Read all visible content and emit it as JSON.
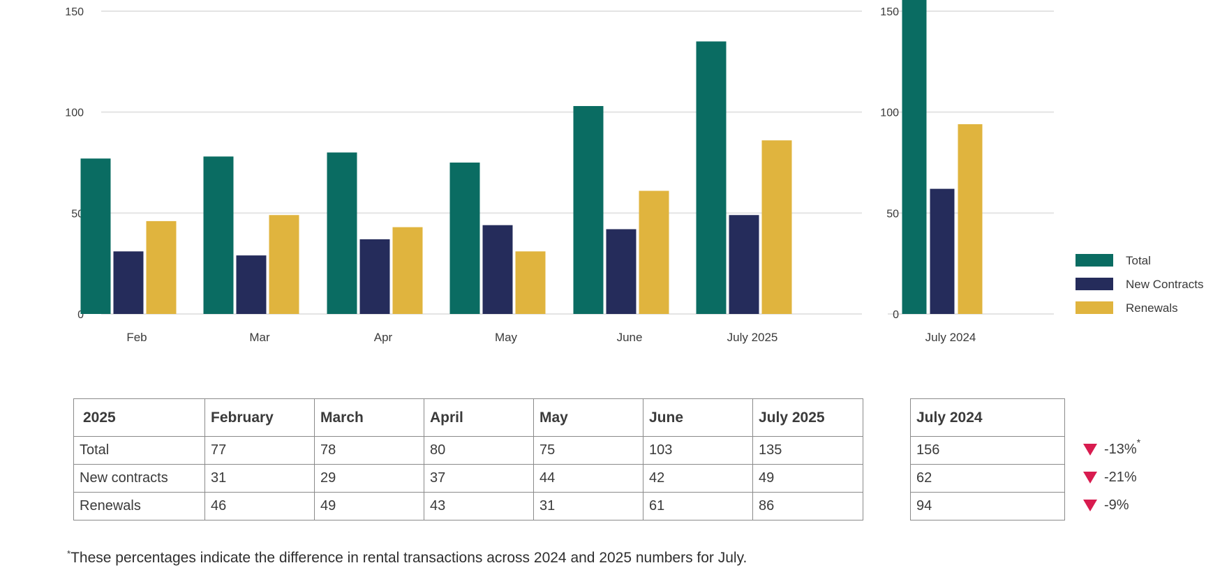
{
  "colors": {
    "total": "#0a6c62",
    "new": "#252c5b",
    "renewals": "#e0b43e",
    "down": "#d81b4f",
    "grid": "#e4e4e4"
  },
  "chart_data": [
    {
      "type": "bar",
      "categories": [
        "Feb",
        "Mar",
        "Apr",
        "May",
        "June",
        "July 2025"
      ],
      "series": [
        {
          "name": "Total",
          "values": [
            77,
            78,
            80,
            75,
            103,
            135
          ]
        },
        {
          "name": "New Contracts",
          "values": [
            31,
            29,
            37,
            44,
            42,
            49
          ]
        },
        {
          "name": "Renewals",
          "values": [
            46,
            49,
            43,
            31,
            61,
            86
          ]
        }
      ],
      "yticks": [
        0,
        50,
        100,
        150
      ],
      "ylim": [
        0,
        150
      ],
      "grid": true
    },
    {
      "type": "bar",
      "categories": [
        "July 2024"
      ],
      "series": [
        {
          "name": "Total",
          "values": [
            156
          ]
        },
        {
          "name": "New Contracts",
          "values": [
            62
          ]
        },
        {
          "name": "Renewals",
          "values": [
            94
          ]
        }
      ],
      "yticks": [
        0,
        50,
        100,
        150
      ],
      "ylim": [
        0,
        150
      ],
      "grid": true,
      "legend": "right"
    }
  ],
  "table": {
    "corner": "2025",
    "headers": [
      "February",
      "March",
      "April",
      "May",
      "June",
      "July 2025"
    ],
    "rows": [
      {
        "label": "Total",
        "values": [
          "77",
          "78",
          "80",
          "75",
          "103",
          "135"
        ]
      },
      {
        "label": "New contracts",
        "values": [
          "31",
          "29",
          "37",
          "44",
          "42",
          "49"
        ]
      },
      {
        "label": "Renewals",
        "values": [
          "46",
          "49",
          "43",
          "31",
          "61",
          "86"
        ]
      }
    ]
  },
  "side_table": {
    "header": "July 2024",
    "values": [
      "156",
      "62",
      "94"
    ]
  },
  "changes": [
    {
      "value": "-13%",
      "mark": "*"
    },
    {
      "value": "-21%"
    },
    {
      "value": "-9%"
    }
  ],
  "footnote": {
    "mark": "*",
    "text": "These percentages indicate the difference in rental transactions across 2024 and 2025 numbers for July."
  }
}
